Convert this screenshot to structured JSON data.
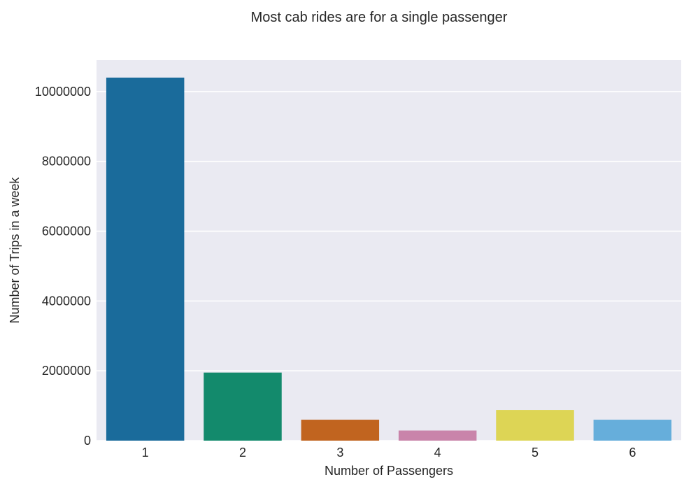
{
  "chart_data": {
    "type": "bar",
    "title": "Most cab rides are for a single passenger",
    "xlabel": "Number of Passengers",
    "ylabel": "Number of Trips in a week",
    "categories": [
      "1",
      "2",
      "3",
      "4",
      "5",
      "6"
    ],
    "values": [
      10400000,
      1950000,
      600000,
      290000,
      880000,
      600000
    ],
    "ylim": [
      0,
      10900000
    ],
    "yticks": [
      0,
      2000000,
      4000000,
      6000000,
      8000000,
      10000000
    ],
    "ytick_labels": [
      "0",
      "2000000",
      "4000000",
      "6000000",
      "8000000",
      "10000000"
    ],
    "grid": true,
    "colors": [
      "#1a6b9b",
      "#138a6c",
      "#c1641f",
      "#c984aa",
      "#ddd555",
      "#66aedb"
    ],
    "background": "#eaeaf2",
    "grid_color": "#ffffff"
  }
}
